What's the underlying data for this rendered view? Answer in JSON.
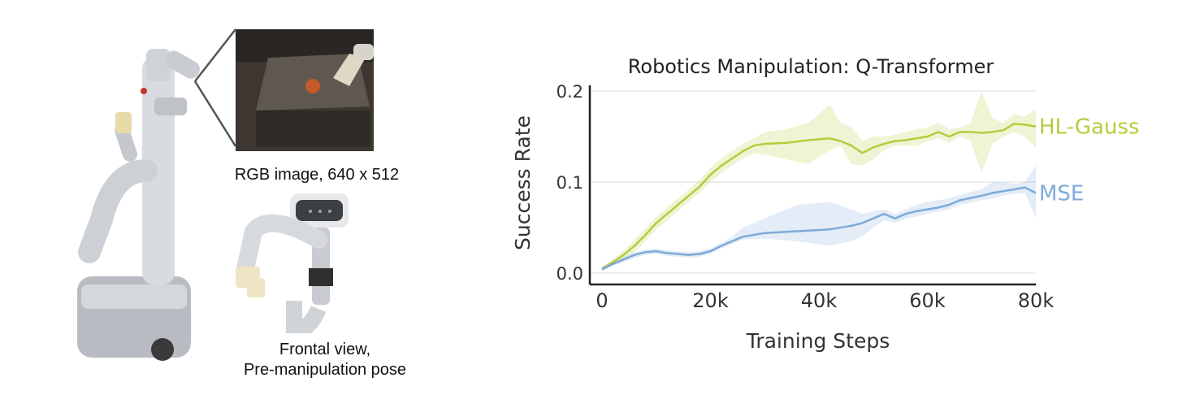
{
  "figure": {
    "rgb_caption": "RGB image, 640 x 512",
    "frontal_caption_line1": "Frontal view,",
    "frontal_caption_line2": "Pre-manipulation pose"
  },
  "chart_data": {
    "type": "line",
    "title": "Robotics Manipulation: Q-Transformer",
    "xlabel": "Training Steps",
    "ylabel": "Success Rate",
    "xlim": [
      0,
      80000
    ],
    "ylim": [
      0,
      0.2
    ],
    "x_ticks": [
      0,
      20000,
      40000,
      60000,
      80000
    ],
    "x_tick_labels": [
      "0",
      "20k",
      "40k",
      "60k",
      "80k"
    ],
    "y_ticks": [
      0,
      0.1,
      0.2
    ],
    "y_tick_labels": [
      "0.0",
      "0.1",
      "0.2"
    ],
    "grid": "horizontal",
    "legend": "direct labels at line ends",
    "series": [
      {
        "name": "HL-Gauss",
        "color": "#b5cc3c",
        "x": [
          0,
          2000,
          4000,
          6000,
          8000,
          10000,
          12000,
          14000,
          16000,
          18000,
          20000,
          22000,
          24000,
          26000,
          28000,
          30000,
          34000,
          38000,
          42000,
          44000,
          46000,
          48000,
          50000,
          52000,
          54000,
          56000,
          58000,
          60000,
          62000,
          64000,
          66000,
          68000,
          70000,
          72000,
          74000,
          76000,
          78000,
          80000
        ],
        "y": [
          0.005,
          0.012,
          0.02,
          0.03,
          0.042,
          0.055,
          0.065,
          0.075,
          0.085,
          0.095,
          0.108,
          0.118,
          0.126,
          0.134,
          0.14,
          0.142,
          0.143,
          0.146,
          0.148,
          0.145,
          0.14,
          0.132,
          0.138,
          0.142,
          0.145,
          0.146,
          0.148,
          0.15,
          0.155,
          0.15,
          0.155,
          0.155,
          0.154,
          0.155,
          0.157,
          0.164,
          0.163,
          0.161
        ],
        "lower": [
          0.003,
          0.009,
          0.015,
          0.023,
          0.035,
          0.048,
          0.058,
          0.068,
          0.078,
          0.088,
          0.1,
          0.11,
          0.118,
          0.126,
          0.132,
          0.13,
          0.125,
          0.12,
          0.135,
          0.14,
          0.12,
          0.118,
          0.125,
          0.135,
          0.14,
          0.14,
          0.14,
          0.145,
          0.148,
          0.143,
          0.15,
          0.145,
          0.11,
          0.142,
          0.15,
          0.155,
          0.15,
          0.138
        ],
        "upper": [
          0.007,
          0.015,
          0.025,
          0.037,
          0.049,
          0.062,
          0.072,
          0.082,
          0.092,
          0.102,
          0.116,
          0.126,
          0.134,
          0.142,
          0.148,
          0.155,
          0.158,
          0.165,
          0.185,
          0.165,
          0.16,
          0.145,
          0.15,
          0.15,
          0.152,
          0.155,
          0.158,
          0.16,
          0.165,
          0.158,
          0.16,
          0.165,
          0.2,
          0.17,
          0.165,
          0.175,
          0.172,
          0.18
        ]
      },
      {
        "name": "MSE",
        "color": "#7eaad9",
        "x": [
          0,
          2000,
          4000,
          6000,
          8000,
          10000,
          12000,
          14000,
          16000,
          18000,
          20000,
          22000,
          24000,
          26000,
          30000,
          36000,
          42000,
          46000,
          48000,
          50000,
          52000,
          54000,
          56000,
          58000,
          60000,
          62000,
          64000,
          66000,
          70000,
          72000,
          74000,
          76000,
          78000,
          80000
        ],
        "y": [
          0.004,
          0.01,
          0.015,
          0.02,
          0.023,
          0.024,
          0.022,
          0.021,
          0.02,
          0.021,
          0.024,
          0.03,
          0.035,
          0.04,
          0.044,
          0.046,
          0.048,
          0.052,
          0.055,
          0.06,
          0.065,
          0.06,
          0.065,
          0.068,
          0.07,
          0.072,
          0.075,
          0.08,
          0.085,
          0.088,
          0.09,
          0.092,
          0.094,
          0.088
        ],
        "lower": [
          0.002,
          0.008,
          0.012,
          0.017,
          0.02,
          0.021,
          0.019,
          0.018,
          0.017,
          0.018,
          0.021,
          0.027,
          0.032,
          0.037,
          0.038,
          0.035,
          0.03,
          0.035,
          0.04,
          0.05,
          0.058,
          0.055,
          0.06,
          0.062,
          0.065,
          0.068,
          0.07,
          0.075,
          0.08,
          0.082,
          0.085,
          0.087,
          0.088,
          0.06
        ],
        "upper": [
          0.006,
          0.012,
          0.018,
          0.023,
          0.026,
          0.027,
          0.025,
          0.024,
          0.023,
          0.024,
          0.027,
          0.033,
          0.04,
          0.05,
          0.06,
          0.075,
          0.078,
          0.07,
          0.065,
          0.068,
          0.07,
          0.065,
          0.07,
          0.075,
          0.078,
          0.08,
          0.082,
          0.086,
          0.092,
          0.1,
          0.1,
          0.098,
          0.1,
          0.118
        ]
      }
    ]
  }
}
